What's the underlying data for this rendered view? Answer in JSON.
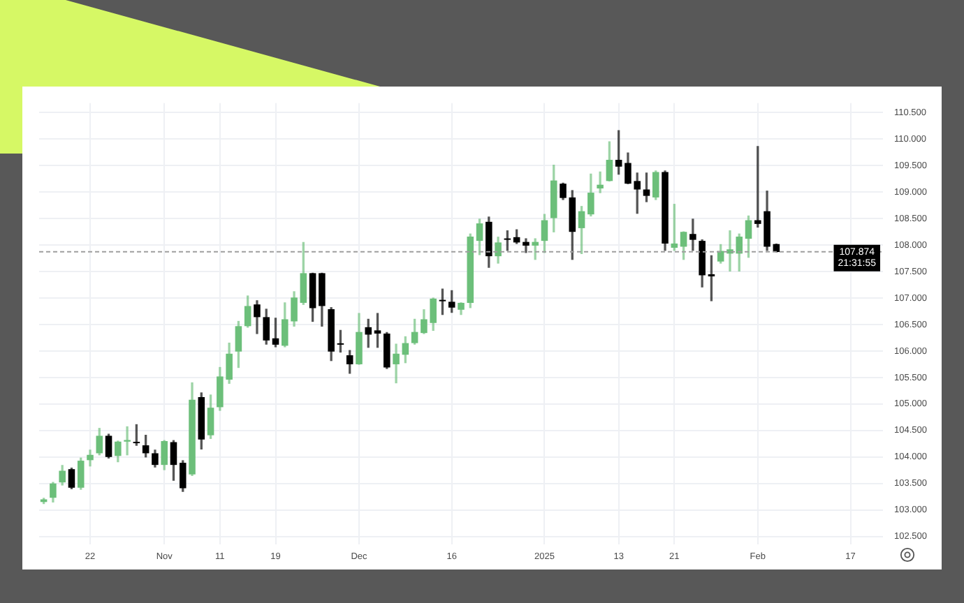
{
  "chart_data": {
    "type": "candlestick",
    "categories": [
      null,
      null,
      null,
      null,
      null,
      "22",
      null,
      null,
      null,
      null,
      null,
      null,
      null,
      "Nov",
      null,
      null,
      null,
      null,
      null,
      "11",
      null,
      null,
      null,
      null,
      null,
      "19",
      null,
      null,
      null,
      null,
      null,
      null,
      null,
      null,
      "Dec",
      null,
      null,
      null,
      null,
      null,
      null,
      null,
      null,
      null,
      "16",
      null,
      null,
      null,
      null,
      null,
      null,
      null,
      null,
      null,
      "2025",
      null,
      null,
      null,
      null,
      null,
      null,
      null,
      "13",
      null,
      null,
      null,
      null,
      null,
      "21",
      null,
      null,
      null,
      null,
      null,
      null,
      null,
      null,
      "Feb",
      null,
      null,
      null,
      null,
      null,
      null,
      null,
      null,
      null,
      "17",
      null,
      null,
      null
    ],
    "ohlc": [
      [
        103.15,
        103.22,
        103.12,
        103.2
      ],
      [
        103.23,
        103.52,
        103.15,
        103.5
      ],
      [
        103.52,
        103.84,
        103.47,
        103.74
      ],
      [
        103.77,
        103.79,
        103.4,
        103.42
      ],
      [
        103.42,
        103.98,
        103.39,
        103.93
      ],
      [
        103.94,
        104.13,
        103.83,
        104.04
      ],
      [
        104.07,
        104.54,
        104.04,
        104.4
      ],
      [
        104.4,
        104.43,
        103.98,
        104
      ],
      [
        104.02,
        104.3,
        103.91,
        104.29
      ],
      [
        104.29,
        104.57,
        104.04,
        104.32
      ],
      [
        104.28,
        104.61,
        104.22,
        104.26
      ],
      [
        104.22,
        104.41,
        104,
        104.07
      ],
      [
        104.07,
        104.13,
        103.81,
        103.85
      ],
      [
        103.85,
        104.31,
        103.76,
        104.3
      ],
      [
        104.28,
        104.31,
        103.56,
        103.85
      ],
      [
        103.89,
        103.93,
        103.35,
        103.41
      ],
      [
        103.67,
        105.4,
        103.65,
        105.08
      ],
      [
        105.13,
        105.21,
        104.15,
        104.33
      ],
      [
        104.41,
        105.17,
        104.35,
        104.93
      ],
      [
        104.94,
        105.69,
        104.88,
        105.52
      ],
      [
        105.46,
        106.15,
        105.39,
        105.95
      ],
      [
        105.99,
        106.56,
        105.69,
        106.47
      ],
      [
        106.47,
        107.04,
        106.45,
        106.85
      ],
      [
        106.88,
        106.95,
        106.33,
        106.64
      ],
      [
        106.64,
        106.79,
        106.13,
        106.2
      ],
      [
        106.24,
        106.62,
        106.08,
        106.12
      ],
      [
        106.1,
        106.91,
        106.08,
        106.6
      ],
      [
        106.56,
        107.12,
        106.47,
        107.01
      ],
      [
        106.91,
        108.05,
        106.88,
        107.47
      ],
      [
        107.47,
        107.47,
        106.56,
        106.81
      ],
      [
        107.47,
        107.47,
        106.47,
        106.85
      ],
      [
        106.79,
        106.82,
        105.82,
        105.99
      ],
      [
        106.14,
        106.39,
        105.98,
        106.12
      ],
      [
        105.92,
        106.01,
        105.58,
        105.75
      ],
      [
        105.75,
        106.71,
        105.75,
        106.36
      ],
      [
        106.45,
        106.6,
        106.07,
        106.31
      ],
      [
        106.39,
        106.71,
        106.07,
        106.33
      ],
      [
        106.33,
        106.35,
        105.67,
        105.69
      ],
      [
        105.75,
        106.13,
        105.4,
        105.95
      ],
      [
        105.93,
        106.27,
        105.78,
        106.15
      ],
      [
        106.15,
        106.6,
        106.13,
        106.36
      ],
      [
        106.34,
        106.78,
        106.33,
        106.6
      ],
      [
        106.53,
        107,
        106.39,
        106.99
      ],
      [
        106.96,
        107.17,
        106.69,
        106.94
      ],
      [
        106.93,
        107.14,
        106.73,
        106.82
      ],
      [
        106.78,
        106.91,
        106.69,
        106.91
      ],
      [
        106.91,
        108.21,
        106.82,
        108.16
      ],
      [
        108.08,
        108.49,
        107.82,
        108.41
      ],
      [
        108.44,
        108.53,
        107.58,
        107.79
      ],
      [
        107.79,
        108.15,
        107.66,
        108.05
      ],
      [
        108.12,
        108.27,
        107.9,
        108.1
      ],
      [
        108.15,
        108.29,
        108.03,
        108.05
      ],
      [
        108.06,
        108.12,
        107.86,
        107.99
      ],
      [
        107.99,
        108.12,
        107.73,
        108.06
      ],
      [
        108.08,
        108.58,
        107.86,
        108.47
      ],
      [
        108.51,
        109.51,
        108.25,
        109.22
      ],
      [
        109.16,
        109.17,
        108.86,
        108.89
      ],
      [
        108.9,
        109.03,
        107.73,
        108.25
      ],
      [
        108.32,
        108.73,
        107.84,
        108.64
      ],
      [
        108.58,
        109.34,
        108.55,
        108.99
      ],
      [
        109.07,
        109.38,
        108.99,
        109.14
      ],
      [
        109.21,
        109.95,
        109.21,
        109.61
      ],
      [
        109.61,
        110.16,
        109.34,
        109.48
      ],
      [
        109.55,
        109.74,
        109.16,
        109.16
      ],
      [
        109.21,
        109.36,
        108.6,
        109.05
      ],
      [
        109.05,
        109.36,
        108.82,
        108.93
      ],
      [
        108.9,
        109.4,
        108.86,
        109.38
      ],
      [
        109.38,
        109.4,
        107.9,
        108.03
      ],
      [
        107.95,
        108.77,
        107.9,
        108.03
      ],
      [
        107.97,
        108.25,
        107.73,
        108.25
      ],
      [
        108.21,
        108.49,
        107.9,
        108.1
      ],
      [
        108.08,
        108.1,
        107.21,
        107.43
      ],
      [
        107.45,
        107.8,
        106.95,
        107.41
      ],
      [
        107.69,
        108.01,
        107.66,
        107.89
      ],
      [
        107.84,
        108.27,
        107.51,
        107.92
      ],
      [
        107.84,
        108.21,
        107.51,
        108.16
      ],
      [
        108.12,
        108.55,
        107.77,
        108.47
      ],
      [
        108.47,
        109.86,
        108.34,
        108.4
      ],
      [
        108.64,
        109.02,
        107.9,
        107.97
      ],
      [
        108.02,
        108.02,
        107.87,
        107.87
      ],
      null,
      null,
      null,
      null,
      null,
      null,
      null,
      null,
      null,
      null,
      null
    ],
    "colors": [
      "#6cbf7a",
      "#6cbf7a",
      "#6cbf7a",
      "#000000",
      "#6cbf7a",
      "#6cbf7a",
      "#6cbf7a",
      "#000000",
      "#6cbf7a",
      "#6cbf7a",
      "#000000",
      "#000000",
      "#000000",
      "#6cbf7a",
      "#000000",
      "#000000",
      "#6cbf7a",
      "#000000",
      "#6cbf7a",
      "#6cbf7a",
      "#6cbf7a",
      "#6cbf7a",
      "#6cbf7a",
      "#000000",
      "#000000",
      "#000000",
      "#6cbf7a",
      "#6cbf7a",
      "#6cbf7a",
      "#000000",
      "#000000",
      "#000000",
      "#000000",
      "#000000",
      "#6cbf7a",
      "#000000",
      "#000000",
      "#000000",
      "#6cbf7a",
      "#6cbf7a",
      "#6cbf7a",
      "#6cbf7a",
      "#6cbf7a",
      "#000000",
      "#000000",
      "#6cbf7a",
      "#6cbf7a",
      "#6cbf7a",
      "#000000",
      "#6cbf7a",
      "#000000",
      "#000000",
      "#000000",
      "#6cbf7a",
      "#6cbf7a",
      "#6cbf7a",
      "#000000",
      "#000000",
      "#6cbf7a",
      "#6cbf7a",
      "#6cbf7a",
      "#6cbf7a",
      "#000000",
      "#000000",
      "#000000",
      "#000000",
      "#6cbf7a",
      "#000000",
      "#6cbf7a",
      "#6cbf7a",
      "#000000",
      "#000000",
      "#000000",
      "#6cbf7a",
      "#6cbf7a",
      "#6cbf7a",
      "#6cbf7a",
      "#000000",
      "#000000",
      "#000000",
      null,
      null,
      null,
      null,
      null,
      null,
      null,
      null,
      null,
      null,
      null
    ],
    "ylim": [
      102.35,
      110.68
    ],
    "yticks": [
      {
        "value": 102.5,
        "label": "102.500"
      },
      {
        "value": 103,
        "label": "103.000"
      },
      {
        "value": 103.5,
        "label": "103.500"
      },
      {
        "value": 104,
        "label": "104.000"
      },
      {
        "value": 104.5,
        "label": "104.500"
      },
      {
        "value": 105,
        "label": "105.000"
      },
      {
        "value": 105.5,
        "label": "105.500"
      },
      {
        "value": 106,
        "label": "106.000"
      },
      {
        "value": 106.5,
        "label": "106.500"
      },
      {
        "value": 107,
        "label": "107.000"
      },
      {
        "value": 107.5,
        "label": "107.500"
      },
      {
        "value": 108,
        "label": "108.000"
      },
      {
        "value": 108.5,
        "label": "108.500"
      },
      {
        "value": 109,
        "label": "109.000"
      },
      {
        "value": 109.5,
        "label": "109.500"
      },
      {
        "value": 110,
        "label": "110.000"
      },
      {
        "value": 110.5,
        "label": "110.500"
      }
    ],
    "grid": true,
    "ref_lines": [
      {
        "axis": "y",
        "value": 107.874,
        "label": "107.874",
        "color": "#9e9e9e",
        "line_style": "dashed"
      }
    ],
    "annotations": [
      "21:31:55"
    ]
  }
}
